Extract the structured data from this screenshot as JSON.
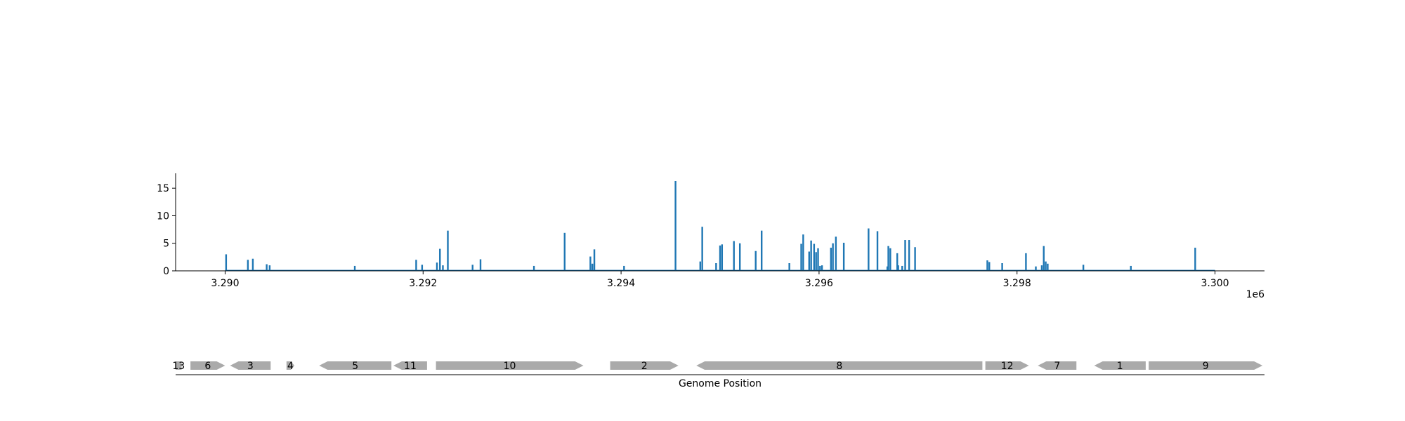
{
  "chart_data": [
    {
      "type": "bar",
      "xlim": [
        3289500,
        3300500
      ],
      "ylim": [
        0,
        17.7
      ],
      "xticks": [
        {
          "value": 3290000,
          "label": "3.290"
        },
        {
          "value": 3292000,
          "label": "3.292"
        },
        {
          "value": 3294000,
          "label": "3.294"
        },
        {
          "value": 3296000,
          "label": "3.296"
        },
        {
          "value": 3298000,
          "label": "3.298"
        },
        {
          "value": 3300000,
          "label": "3.300"
        }
      ],
      "xoffset_label": "1e6",
      "yticks": [
        {
          "value": 0,
          "label": "0"
        },
        {
          "value": 5,
          "label": "5"
        },
        {
          "value": 10,
          "label": "10"
        },
        {
          "value": 15,
          "label": "15"
        }
      ],
      "baseline_span": [
        3290000,
        3300000
      ],
      "series": [
        {
          "color": "#1f77b4",
          "x": [
            3290010,
            3290230,
            3290280,
            3290420,
            3290450,
            3291310,
            3291930,
            3291990,
            3292140,
            3292170,
            3292200,
            3292250,
            3292500,
            3292580,
            3293120,
            3293430,
            3293690,
            3293710,
            3293730,
            3294030,
            3294550,
            3294800,
            3294820,
            3294960,
            3295000,
            3295020,
            3295140,
            3295200,
            3295360,
            3295420,
            3295700,
            3295820,
            3295840,
            3295900,
            3295920,
            3295950,
            3295970,
            3295990,
            3296010,
            3296030,
            3296120,
            3296140,
            3296170,
            3296250,
            3296500,
            3296590,
            3296690,
            3296700,
            3296720,
            3296790,
            3296800,
            3296840,
            3296870,
            3296910,
            3296970,
            3297700,
            3297720,
            3297850,
            3298090,
            3298190,
            3298250,
            3298270,
            3298290,
            3298310,
            3298670,
            3299150,
            3299800
          ],
          "values": [
            3.0,
            2.0,
            2.2,
            1.2,
            1.0,
            0.9,
            2.0,
            1.1,
            1.5,
            4.0,
            1.0,
            7.3,
            1.1,
            2.1,
            0.9,
            6.9,
            2.6,
            1.3,
            3.9,
            0.9,
            16.3,
            1.7,
            8.0,
            1.4,
            4.6,
            4.8,
            5.4,
            5.0,
            3.6,
            7.3,
            1.4,
            4.9,
            6.6,
            3.5,
            5.5,
            4.9,
            3.4,
            4.1,
            0.9,
            1.0,
            4.2,
            5.0,
            6.2,
            5.1,
            7.7,
            7.2,
            0.8,
            4.5,
            4.1,
            3.2,
            1.0,
            0.9,
            5.6,
            5.6,
            4.3,
            1.9,
            1.6,
            1.4,
            3.2,
            0.8,
            1.0,
            4.5,
            1.7,
            1.3,
            1.1,
            0.9,
            4.2
          ]
        }
      ]
    },
    {
      "type": "gene-map",
      "xlabel": "Genome Position",
      "genes": [
        {
          "label": "13",
          "start": 3289500,
          "end": 3289560,
          "strand": "none"
        },
        {
          "label": "6",
          "start": 3289650,
          "end": 3290000,
          "strand": "+"
        },
        {
          "label": "3",
          "start": 3290050,
          "end": 3290460,
          "strand": "-"
        },
        {
          "label": "4",
          "start": 3290620,
          "end": 3290700,
          "strand": "+"
        },
        {
          "label": "5",
          "start": 3290950,
          "end": 3291680,
          "strand": "-"
        },
        {
          "label": "11",
          "start": 3291700,
          "end": 3292040,
          "strand": "-"
        },
        {
          "label": "10",
          "start": 3292130,
          "end": 3293620,
          "strand": "+"
        },
        {
          "label": "2",
          "start": 3293890,
          "end": 3294580,
          "strand": "+"
        },
        {
          "label": "8",
          "start": 3294760,
          "end": 3297650,
          "strand": "-"
        },
        {
          "label": "12",
          "start": 3297680,
          "end": 3298120,
          "strand": "+"
        },
        {
          "label": "7",
          "start": 3298210,
          "end": 3298600,
          "strand": "-"
        },
        {
          "label": "1",
          "start": 3298780,
          "end": 3299300,
          "strand": "-"
        },
        {
          "label": "9",
          "start": 3299330,
          "end": 3300480,
          "strand": "+"
        }
      ],
      "gene_color": "#aaaaaa"
    }
  ]
}
